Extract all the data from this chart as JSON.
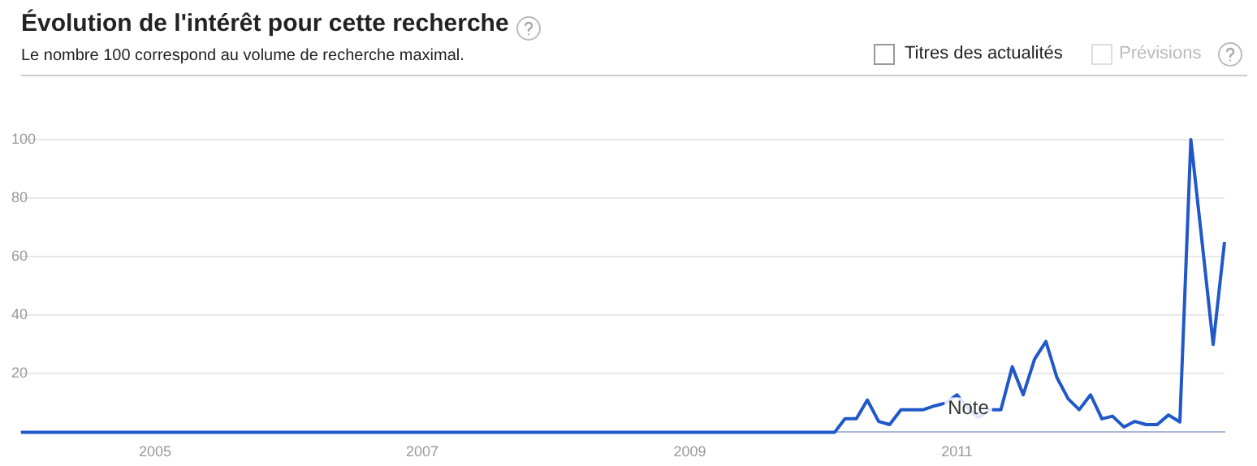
{
  "chart_data": {
    "type": "line",
    "title": "Évolution de l'intérêt pour cette recherche",
    "subtitle": "Le nombre 100 correspond au volume de recherche maximal.",
    "annotations": [
      "Titres des actualités",
      "Prévisions",
      {
        "text": "Note",
        "x": "2011-02",
        "y": 8
      }
    ],
    "x": [
      "2004-01",
      "2010-02",
      "2010-03",
      "2010-04",
      "2010-05",
      "2010-06",
      "2010-07",
      "2010-08",
      "2010-09",
      "2010-10",
      "2010-11",
      "2010-12",
      "2011-01",
      "2011-02",
      "2011-03",
      "2011-04",
      "2011-05",
      "2011-06",
      "2011-07",
      "2011-08",
      "2011-09",
      "2011-10",
      "2011-11",
      "2011-12",
      "2012-01",
      "2012-02",
      "2012-03",
      "2012-04",
      "2012-05",
      "2012-06",
      "2012-07",
      "2012-08",
      "2012-09",
      "2012-10",
      "2012-11",
      "2012-12",
      "2013-01"
    ],
    "values": [
      0,
      0,
      4.6,
      4.6,
      11,
      3.7,
      2.6,
      7.7,
      7.7,
      7.7,
      9,
      10,
      12.8,
      8,
      5,
      7.7,
      7.7,
      22.4,
      12.8,
      25,
      31,
      18.7,
      11.4,
      7.7,
      12.8,
      4.6,
      5.5,
      1.8,
      3.7,
      2.6,
      2.6,
      5.9,
      3.5,
      100,
      64.6,
      30,
      65
    ],
    "color": "#2158c8",
    "line_style": "solid",
    "marker": "none",
    "xlim": [
      "2004-01",
      "2013-01"
    ],
    "xticks": [
      "2005",
      "2007",
      "2009",
      "2011"
    ],
    "ylim": [
      0,
      100
    ],
    "yticks": [
      20,
      40,
      60,
      80,
      100
    ],
    "grid": "y",
    "legend": false
  }
}
